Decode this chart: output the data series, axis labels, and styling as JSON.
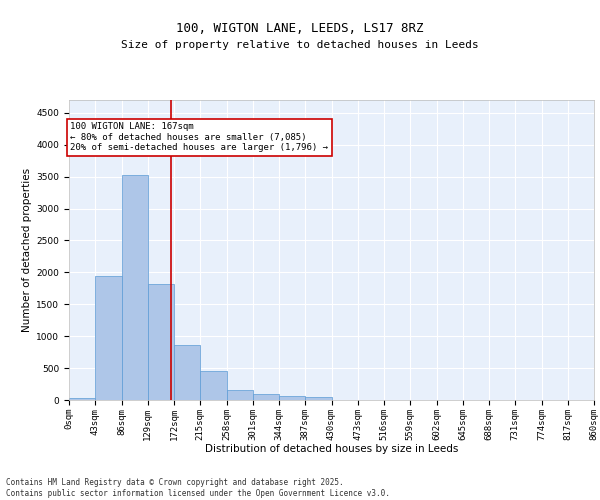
{
  "title_line1": "100, WIGTON LANE, LEEDS, LS17 8RZ",
  "title_line2": "Size of property relative to detached houses in Leeds",
  "xlabel": "Distribution of detached houses by size in Leeds",
  "ylabel": "Number of detached properties",
  "bar_values": [
    30,
    1950,
    3520,
    1820,
    860,
    450,
    160,
    95,
    55,
    50,
    0,
    0,
    0,
    0,
    0,
    0,
    0,
    0,
    0,
    0
  ],
  "bin_labels": [
    "0sqm",
    "43sqm",
    "86sqm",
    "129sqm",
    "172sqm",
    "215sqm",
    "258sqm",
    "301sqm",
    "344sqm",
    "387sqm",
    "430sqm",
    "473sqm",
    "516sqm",
    "559sqm",
    "602sqm",
    "645sqm",
    "688sqm",
    "731sqm",
    "774sqm",
    "817sqm",
    "860sqm"
  ],
  "bar_color": "#aec6e8",
  "bar_edge_color": "#5b9bd5",
  "vline_x": 3.88,
  "vline_color": "#cc0000",
  "annotation_text": "100 WIGTON LANE: 167sqm\n← 80% of detached houses are smaller (7,085)\n20% of semi-detached houses are larger (1,796) →",
  "annotation_box_color": "#cc0000",
  "ylim": [
    0,
    4700
  ],
  "yticks": [
    0,
    500,
    1000,
    1500,
    2000,
    2500,
    3000,
    3500,
    4000,
    4500
  ],
  "background_color": "#e8f0fb",
  "grid_color": "#ffffff",
  "footer_text": "Contains HM Land Registry data © Crown copyright and database right 2025.\nContains public sector information licensed under the Open Government Licence v3.0.",
  "title_fontsize": 9,
  "subtitle_fontsize": 8,
  "annotation_fontsize": 6.5,
  "axis_label_fontsize": 7.5,
  "tick_fontsize": 6.5,
  "footer_fontsize": 5.5
}
